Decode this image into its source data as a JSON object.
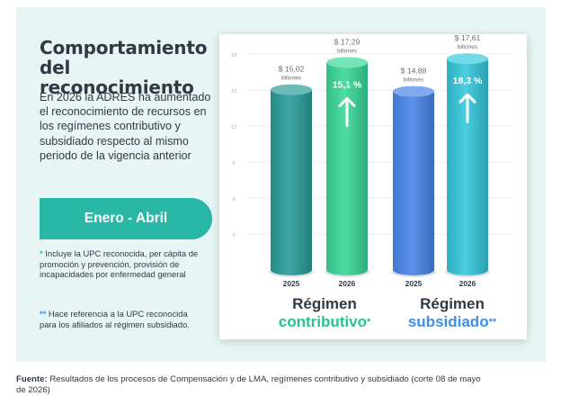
{
  "title": "Comportamiento del reconocimiento",
  "description": "En 2026 la ADRES ha aumentado el reconocimiento de recursos en los regímenes contributivo y subsidiado respecto al mismo periodo de la vigencia anterior",
  "period_label": "Enero - Abril",
  "notes": [
    {
      "marker": "*",
      "text": "Incluye la UPC reconocida, per cápita de promoción y prevención, provisión de incapacidades por enfermedad general"
    },
    {
      "marker": "**",
      "text": "Hace referencia a la UPC reconocida para los afiliados al régimen subsidiado."
    }
  ],
  "regimes": [
    {
      "line1": "Régimen",
      "line2": "contributivo",
      "marker": "*"
    },
    {
      "line1": "Régimen",
      "line2": "subsidiado",
      "marker": "**"
    }
  ],
  "source": {
    "label": "Fuente:",
    "text": "Resultados de los procesos de Compensación y de LMA, regímenes contributivo y subsidiado (corte 08 de mayo de 2026)"
  },
  "colors": {
    "accent": "#29b8a5",
    "contributivo": "#2cc28a",
    "subsidiado": "#3f8fe8",
    "text": "#2f3a46"
  },
  "chart_data": {
    "type": "bar",
    "ylim": [
      0,
      18
    ],
    "yticks": [
      "3",
      "6",
      "9",
      "12",
      "15",
      "18"
    ],
    "grid": true,
    "bars": [
      {
        "group": "contributivo",
        "year": "2025",
        "value": 15.02,
        "value_label": "$ 15,02",
        "unit": "billones",
        "color": "#2a9e9a"
      },
      {
        "group": "contributivo",
        "year": "2026",
        "value": 17.29,
        "value_label": "$ 17,29",
        "unit": "billones",
        "color": "#3ad89a",
        "growth": "15,1 %"
      },
      {
        "group": "subsidiado",
        "year": "2025",
        "value": 14.88,
        "value_label": "$ 14,88",
        "unit": "billones",
        "color": "#4a86ea"
      },
      {
        "group": "subsidiado",
        "year": "2026",
        "value": 17.61,
        "value_label": "$ 17,61",
        "unit": "billones",
        "color": "#36c8dc",
        "growth": "18,3 %"
      }
    ]
  }
}
